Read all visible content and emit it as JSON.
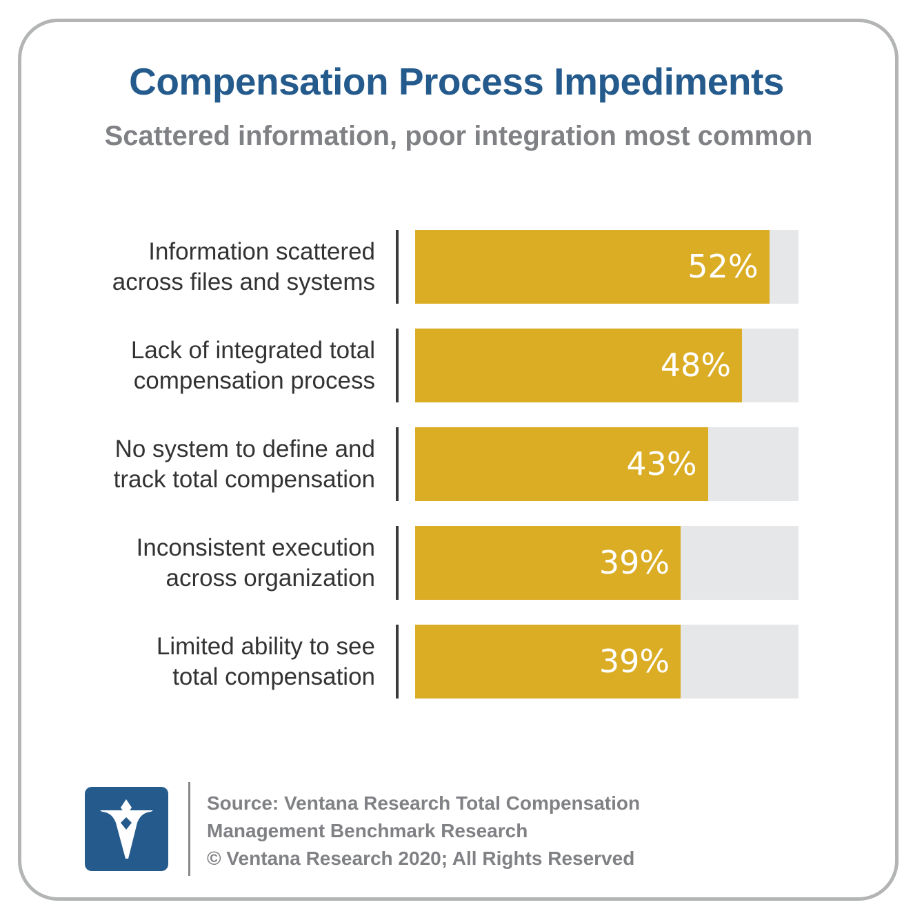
{
  "header": {
    "title": "Compensation Process Impediments",
    "subtitle": "Scattered information, poor integration most common"
  },
  "colors": {
    "title": "#245b8c",
    "subtitle": "#808184",
    "bar": "#dbad25",
    "track": "#e6e7e8",
    "frame": "#b3b4b4",
    "logo": "#245b8c"
  },
  "chart_data": {
    "type": "bar",
    "orientation": "horizontal",
    "title": "Compensation Process Impediments",
    "subtitle": "Scattered information, poor integration most common",
    "categories": [
      "Information scattered across files and systems",
      "Lack of integrated total compensation process",
      "No system to define and track total compensation",
      "Inconsistent execution across organization",
      "Limited ability to see total compensation"
    ],
    "values": [
      52,
      48,
      43,
      39,
      39
    ],
    "value_labels": [
      "52%",
      "48%",
      "43%",
      "39%",
      "39%"
    ],
    "xlabel": "",
    "ylabel": "",
    "xlim": [
      0,
      56.3
    ],
    "grid": false,
    "legend": null
  },
  "rows": [
    {
      "line1": "Information scattered",
      "line2": "across files and systems",
      "value": 52,
      "label": "52%"
    },
    {
      "line1": "Lack of integrated total",
      "line2": "compensation process",
      "value": 48,
      "label": "48%"
    },
    {
      "line1": "No system to define and",
      "line2": "track total compensation",
      "value": 43,
      "label": "43%"
    },
    {
      "line1": "Inconsistent execution",
      "line2": "across organization",
      "value": 39,
      "label": "39%"
    },
    {
      "line1": "Limited ability to see",
      "line2": "total compensation",
      "value": 39,
      "label": "39%"
    }
  ],
  "footer": {
    "logo_icon": "ventana-v-logo",
    "source_line1": "Source: Ventana Research Total Compensation",
    "source_line2": "Management Benchmark Research",
    "copyright": "© Ventana Research 2020; All Rights Reserved"
  }
}
